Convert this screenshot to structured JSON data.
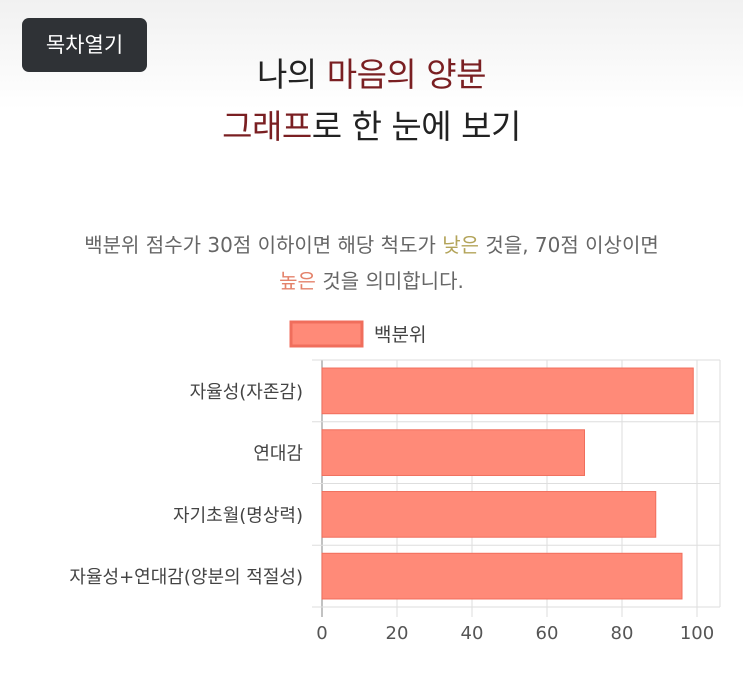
{
  "toc_button": "목차열기",
  "title": {
    "line1_plain": "나의 ",
    "line1_accent": "마음의 양분",
    "line2_accent": "그래프",
    "line2_plain": "로 한 눈에 보기"
  },
  "description": {
    "part1": "백분위 점수가 30점 이하이면 해당 척도가 ",
    "low_word": "낮은",
    "part2": " 것을, 70점 이상이면",
    "high_word": "높은",
    "part3": " 것을 의미합니다."
  },
  "colors": {
    "accent": "#7a1f22",
    "low": "#b3a45a",
    "high": "#e4836b",
    "bar_fill": "#ff8a78",
    "bar_border": "#f06e5c"
  },
  "chart_data": {
    "type": "bar",
    "orientation": "horizontal",
    "legend": "백분위",
    "legend_position": "top",
    "categories": [
      "자율성(자존감)",
      "연대감",
      "자기초월(명상력)",
      "자율성+연대감(양분의 적절성)"
    ],
    "values": [
      99,
      70,
      89,
      96
    ],
    "xlim": [
      0,
      100
    ],
    "xticks": [
      0,
      20,
      40,
      60,
      80,
      100
    ],
    "grid": true
  }
}
